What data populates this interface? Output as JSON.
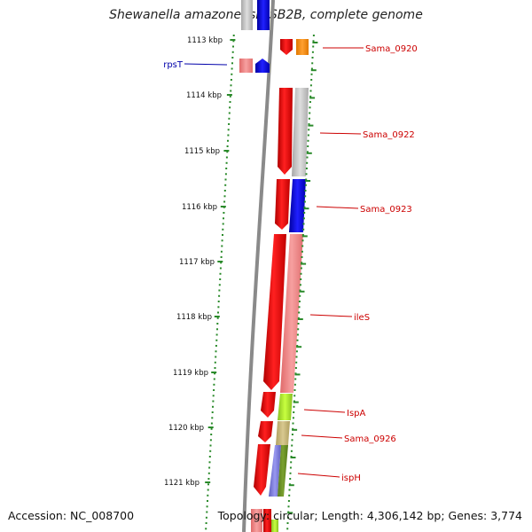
{
  "title": "Shewanella amazonensis SB2B, complete genome",
  "footer": {
    "accession": "Accession: NC_008700",
    "summary": "Topology: circular; Length: 4,306,142 bp; Genes: 3,774"
  },
  "colors": {
    "backbone": "#8a8a8a",
    "ruler_tick": "#2a8a2a",
    "forward_strand_gene": "#ff0000",
    "left_label": "#0000aa",
    "right_label": "#cc0000",
    "pink_gene": "#f08080",
    "blue_gene": "#0000ee",
    "grey_gene": "#bbbbbb",
    "orange_gene": "#ff8c00",
    "yellowgreen_gene": "#9acd32",
    "tan_gene": "#c8b878",
    "olive_gene": "#6b8e23",
    "lavender_gene": "#7b7bd6"
  },
  "ruler": {
    "unit": "kbp",
    "labels": [
      "1113 kbp",
      "1114 kbp",
      "1115 kbp",
      "1116 kbp",
      "1117 kbp",
      "1118 kbp",
      "1119 kbp",
      "1120 kbp",
      "1121 kbp"
    ]
  },
  "gene_labels": {
    "left": [
      "rpsT"
    ],
    "right": [
      "Sama_0920",
      "Sama_0922",
      "Sama_0923",
      "ileS",
      "IspA",
      "Sama_0926",
      "ispH"
    ]
  }
}
